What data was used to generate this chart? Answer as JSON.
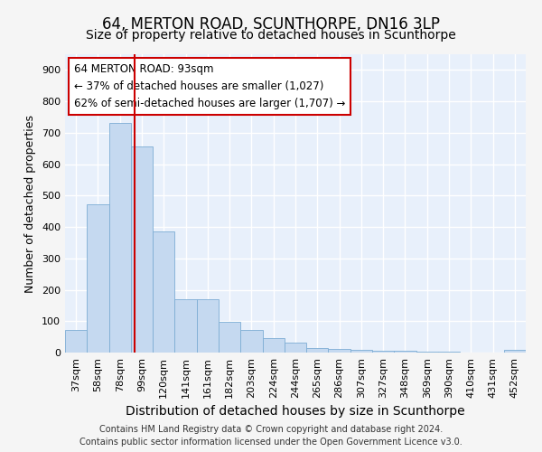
{
  "title": "64, MERTON ROAD, SCUNTHORPE, DN16 3LP",
  "subtitle": "Size of property relative to detached houses in Scunthorpe",
  "xlabel": "Distribution of detached houses by size in Scunthorpe",
  "ylabel": "Number of detached properties",
  "categories": [
    "37sqm",
    "58sqm",
    "78sqm",
    "99sqm",
    "120sqm",
    "141sqm",
    "161sqm",
    "182sqm",
    "203sqm",
    "224sqm",
    "244sqm",
    "265sqm",
    "286sqm",
    "307sqm",
    "327sqm",
    "348sqm",
    "369sqm",
    "390sqm",
    "410sqm",
    "431sqm",
    "452sqm"
  ],
  "values": [
    72,
    472,
    730,
    657,
    385,
    170,
    170,
    98,
    72,
    45,
    32,
    14,
    12,
    8,
    6,
    5,
    4,
    2,
    0,
    0,
    8
  ],
  "bar_color": "#c5d9f0",
  "bar_edge_color": "#7dadd4",
  "vline_color": "#cc0000",
  "annotation_line1": "64 MERTON ROAD: 93sqm",
  "annotation_line2": "← 37% of detached houses are smaller (1,027)",
  "annotation_line3": "62% of semi-detached houses are larger (1,707) →",
  "annotation_box_color": "#ffffff",
  "annotation_box_edge": "#cc0000",
  "footer1": "Contains HM Land Registry data © Crown copyright and database right 2024.",
  "footer2": "Contains public sector information licensed under the Open Government Licence v3.0.",
  "ylim": [
    0,
    950
  ],
  "yticks": [
    0,
    100,
    200,
    300,
    400,
    500,
    600,
    700,
    800,
    900
  ],
  "background_color": "#e8f0fb",
  "grid_color": "#ffffff",
  "fig_bg_color": "#f5f5f5",
  "title_fontsize": 12,
  "subtitle_fontsize": 10,
  "tick_fontsize": 8,
  "ylabel_fontsize": 9,
  "xlabel_fontsize": 10,
  "annot_fontsize": 8.5,
  "footer_fontsize": 7
}
